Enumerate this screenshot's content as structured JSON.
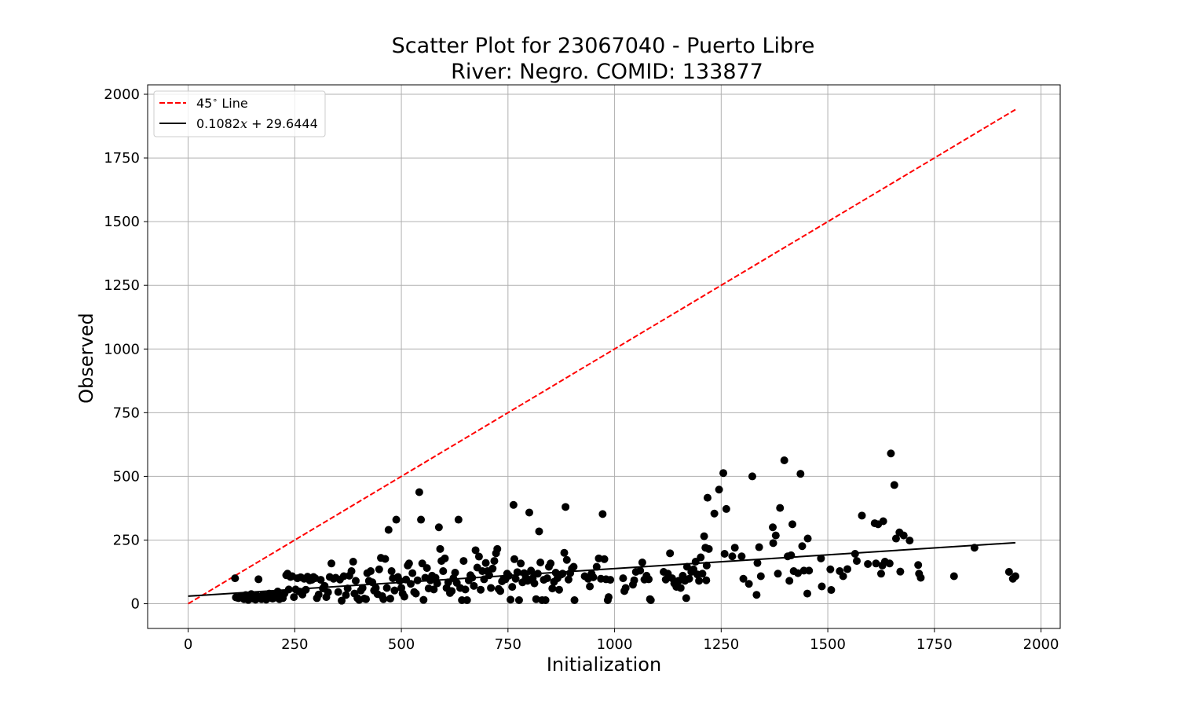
{
  "chart_data": {
    "type": "scatter",
    "title": "Scatter Plot for 23067040 - Puerto Libre",
    "subtitle": "River: Negro. COMID: 133877",
    "xlabel": "Initialization",
    "ylabel": "Observed",
    "xlim": [
      -95,
      2045
    ],
    "ylim": [
      -97,
      2037
    ],
    "xticks": [
      0,
      250,
      500,
      750,
      1000,
      1250,
      1500,
      1750,
      2000
    ],
    "yticks": [
      0,
      250,
      500,
      750,
      1000,
      1250,
      1500,
      1750,
      2000
    ],
    "grid": true,
    "legend_position": "top-left",
    "colors": {
      "points": "#000000",
      "identity_line": "#ff0000",
      "fit_line": "#000000",
      "grid": "#b0b0b0"
    },
    "lines": [
      {
        "name": "45° Line",
        "legend_label": "45$^\\circ$ Line",
        "style": "dashed",
        "color": "#ff0000",
        "x": [
          0,
          1940
        ],
        "y": [
          0,
          1940
        ]
      },
      {
        "name": "0.1082x + 29.6444",
        "legend_label": "0.1082x + 29.6444",
        "style": "solid",
        "color": "#000000",
        "slope": 0.1082,
        "intercept": 29.6444,
        "x": [
          0,
          1940
        ],
        "y": [
          29.64,
          239.55
        ]
      }
    ],
    "points": [
      [
        110,
        100
      ],
      [
        112,
        25
      ],
      [
        118,
        22
      ],
      [
        123,
        30
      ],
      [
        127,
        26
      ],
      [
        131,
        18
      ],
      [
        135,
        34
      ],
      [
        138,
        22
      ],
      [
        141,
        15
      ],
      [
        145,
        28
      ],
      [
        148,
        38
      ],
      [
        151,
        20
      ],
      [
        154,
        26
      ],
      [
        158,
        16
      ],
      [
        162,
        31
      ],
      [
        165,
        96
      ],
      [
        168,
        22
      ],
      [
        172,
        18
      ],
      [
        175,
        34
      ],
      [
        179,
        26
      ],
      [
        183,
        16
      ],
      [
        186,
        22
      ],
      [
        190,
        40
      ],
      [
        194,
        28
      ],
      [
        198,
        20
      ],
      [
        202,
        35
      ],
      [
        206,
        25
      ],
      [
        210,
        48
      ],
      [
        214,
        18
      ],
      [
        218,
        30
      ],
      [
        222,
        22
      ],
      [
        226,
        40
      ],
      [
        230,
        112
      ],
      [
        233,
        118
      ],
      [
        236,
        56
      ],
      [
        240,
        105
      ],
      [
        244,
        108
      ],
      [
        248,
        26
      ],
      [
        252,
        56
      ],
      [
        256,
        100
      ],
      [
        260,
        48
      ],
      [
        264,
        104
      ],
      [
        268,
        36
      ],
      [
        272,
        98
      ],
      [
        276,
        55
      ],
      [
        280,
        106
      ],
      [
        285,
        92
      ],
      [
        290,
        94
      ],
      [
        294,
        105
      ],
      [
        298,
        100
      ],
      [
        302,
        22
      ],
      [
        306,
        36
      ],
      [
        311,
        94
      ],
      [
        316,
        60
      ],
      [
        320,
        70
      ],
      [
        324,
        26
      ],
      [
        328,
        45
      ],
      [
        332,
        105
      ],
      [
        336,
        158
      ],
      [
        341,
        98
      ],
      [
        346,
        102
      ],
      [
        352,
        46
      ],
      [
        356,
        95
      ],
      [
        360,
        12
      ],
      [
        365,
        108
      ],
      [
        370,
        34
      ],
      [
        374,
        60
      ],
      [
        378,
        110
      ],
      [
        383,
        128
      ],
      [
        387,
        165
      ],
      [
        390,
        40
      ],
      [
        393,
        90
      ],
      [
        397,
        22
      ],
      [
        401,
        15
      ],
      [
        405,
        52
      ],
      [
        409,
        62
      ],
      [
        413,
        20
      ],
      [
        417,
        18
      ],
      [
        420,
        120
      ],
      [
        424,
        90
      ],
      [
        428,
        128
      ],
      [
        432,
        84
      ],
      [
        436,
        52
      ],
      [
        440,
        62
      ],
      [
        444,
        38
      ],
      [
        448,
        135
      ],
      [
        452,
        180
      ],
      [
        455,
        30
      ],
      [
        458,
        18
      ],
      [
        462,
        176
      ],
      [
        466,
        62
      ],
      [
        470,
        290
      ],
      [
        474,
        20
      ],
      [
        477,
        128
      ],
      [
        480,
        100
      ],
      [
        484,
        52
      ],
      [
        488,
        330
      ],
      [
        492,
        105
      ],
      [
        496,
        90
      ],
      [
        500,
        62
      ],
      [
        503,
        40
      ],
      [
        507,
        28
      ],
      [
        511,
        95
      ],
      [
        515,
        150
      ],
      [
        518,
        158
      ],
      [
        522,
        78
      ],
      [
        526,
        120
      ],
      [
        530,
        46
      ],
      [
        534,
        40
      ],
      [
        538,
        92
      ],
      [
        542,
        438
      ],
      [
        546,
        330
      ],
      [
        549,
        158
      ],
      [
        552,
        15
      ],
      [
        556,
        102
      ],
      [
        560,
        140
      ],
      [
        564,
        60
      ],
      [
        568,
        92
      ],
      [
        572,
        110
      ],
      [
        576,
        56
      ],
      [
        580,
        102
      ],
      [
        584,
        80
      ],
      [
        588,
        300
      ],
      [
        591,
        215
      ],
      [
        594,
        168
      ],
      [
        598,
        128
      ],
      [
        602,
        178
      ],
      [
        606,
        62
      ],
      [
        610,
        84
      ],
      [
        614,
        42
      ],
      [
        618,
        50
      ],
      [
        622,
        100
      ],
      [
        626,
        122
      ],
      [
        630,
        82
      ],
      [
        634,
        330
      ],
      [
        638,
        62
      ],
      [
        642,
        14
      ],
      [
        646,
        168
      ],
      [
        650,
        56
      ],
      [
        654,
        14
      ],
      [
        658,
        92
      ],
      [
        662,
        112
      ],
      [
        666,
        102
      ],
      [
        670,
        70
      ],
      [
        674,
        210
      ],
      [
        678,
        142
      ],
      [
        682,
        185
      ],
      [
        686,
        55
      ],
      [
        690,
        128
      ],
      [
        694,
        96
      ],
      [
        698,
        160
      ],
      [
        702,
        128
      ],
      [
        706,
        112
      ],
      [
        710,
        62
      ],
      [
        714,
        138
      ],
      [
        718,
        168
      ],
      [
        722,
        198
      ],
      [
        725,
        215
      ],
      [
        728,
        58
      ],
      [
        732,
        50
      ],
      [
        736,
        88
      ],
      [
        740,
        98
      ],
      [
        744,
        96
      ],
      [
        748,
        118
      ],
      [
        752,
        110
      ],
      [
        756,
        16
      ],
      [
        760,
        66
      ],
      [
        763,
        388
      ],
      [
        765,
        175
      ],
      [
        768,
        98
      ],
      [
        772,
        124
      ],
      [
        776,
        14
      ],
      [
        780,
        158
      ],
      [
        784,
        84
      ],
      [
        788,
        120
      ],
      [
        792,
        102
      ],
      [
        796,
        90
      ],
      [
        800,
        358
      ],
      [
        804,
        130
      ],
      [
        808,
        100
      ],
      [
        812,
        80
      ],
      [
        816,
        18
      ],
      [
        820,
        118
      ],
      [
        823,
        284
      ],
      [
        826,
        162
      ],
      [
        830,
        14
      ],
      [
        834,
        94
      ],
      [
        838,
        14
      ],
      [
        842,
        100
      ],
      [
        846,
        145
      ],
      [
        850,
        158
      ],
      [
        854,
        60
      ],
      [
        858,
        86
      ],
      [
        862,
        122
      ],
      [
        866,
        100
      ],
      [
        870,
        55
      ],
      [
        874,
        114
      ],
      [
        878,
        118
      ],
      [
        882,
        200
      ],
      [
        885,
        380
      ],
      [
        888,
        172
      ],
      [
        892,
        95
      ],
      [
        896,
        120
      ],
      [
        900,
        138
      ],
      [
        904,
        145
      ],
      [
        906,
        14
      ],
      [
        930,
        108
      ],
      [
        938,
        98
      ],
      [
        942,
        68
      ],
      [
        946,
        118
      ],
      [
        950,
        104
      ],
      [
        958,
        145
      ],
      [
        963,
        178
      ],
      [
        968,
        98
      ],
      [
        972,
        352
      ],
      [
        976,
        175
      ],
      [
        980,
        96
      ],
      [
        984,
        14
      ],
      [
        986,
        26
      ],
      [
        990,
        94
      ],
      [
        1020,
        100
      ],
      [
        1023,
        50
      ],
      [
        1026,
        62
      ],
      [
        1043,
        75
      ],
      [
        1046,
        92
      ],
      [
        1050,
        125
      ],
      [
        1060,
        130
      ],
      [
        1065,
        162
      ],
      [
        1070,
        95
      ],
      [
        1075,
        110
      ],
      [
        1080,
        96
      ],
      [
        1083,
        18
      ],
      [
        1085,
        14
      ],
      [
        1115,
        125
      ],
      [
        1120,
        95
      ],
      [
        1125,
        118
      ],
      [
        1130,
        198
      ],
      [
        1135,
        100
      ],
      [
        1140,
        80
      ],
      [
        1145,
        66
      ],
      [
        1150,
        90
      ],
      [
        1155,
        62
      ],
      [
        1160,
        110
      ],
      [
        1165,
        90
      ],
      [
        1168,
        22
      ],
      [
        1170,
        145
      ],
      [
        1175,
        98
      ],
      [
        1180,
        125
      ],
      [
        1185,
        135
      ],
      [
        1190,
        165
      ],
      [
        1194,
        115
      ],
      [
        1198,
        90
      ],
      [
        1202,
        182
      ],
      [
        1206,
        118
      ],
      [
        1210,
        265
      ],
      [
        1213,
        220
      ],
      [
        1215,
        92
      ],
      [
        1218,
        416
      ],
      [
        1221,
        215
      ],
      [
        1216,
        150
      ],
      [
        1234,
        354
      ],
      [
        1245,
        448
      ],
      [
        1255,
        513
      ],
      [
        1258,
        196
      ],
      [
        1262,
        372
      ],
      [
        1276,
        186
      ],
      [
        1282,
        220
      ],
      [
        1298,
        186
      ],
      [
        1302,
        98
      ],
      [
        1315,
        78
      ],
      [
        1323,
        500
      ],
      [
        1333,
        35
      ],
      [
        1335,
        160
      ],
      [
        1339,
        222
      ],
      [
        1343,
        108
      ],
      [
        1371,
        300
      ],
      [
        1372,
        238
      ],
      [
        1378,
        268
      ],
      [
        1383,
        118
      ],
      [
        1388,
        376
      ],
      [
        1398,
        563
      ],
      [
        1406,
        186
      ],
      [
        1410,
        90
      ],
      [
        1414,
        190
      ],
      [
        1417,
        312
      ],
      [
        1420,
        128
      ],
      [
        1430,
        120
      ],
      [
        1436,
        510
      ],
      [
        1440,
        226
      ],
      [
        1444,
        130
      ],
      [
        1452,
        40
      ],
      [
        1453,
        256
      ],
      [
        1456,
        130
      ],
      [
        1484,
        178
      ],
      [
        1486,
        68
      ],
      [
        1506,
        135
      ],
      [
        1508,
        54
      ],
      [
        1528,
        128
      ],
      [
        1536,
        108
      ],
      [
        1546,
        136
      ],
      [
        1564,
        196
      ],
      [
        1568,
        168
      ],
      [
        1580,
        346
      ],
      [
        1594,
        156
      ],
      [
        1610,
        316
      ],
      [
        1613,
        158
      ],
      [
        1618,
        312
      ],
      [
        1625,
        118
      ],
      [
        1628,
        150
      ],
      [
        1630,
        324
      ],
      [
        1634,
        165
      ],
      [
        1645,
        158
      ],
      [
        1648,
        590
      ],
      [
        1656,
        466
      ],
      [
        1660,
        256
      ],
      [
        1668,
        280
      ],
      [
        1670,
        126
      ],
      [
        1678,
        268
      ],
      [
        1692,
        248
      ],
      [
        1712,
        152
      ],
      [
        1714,
        118
      ],
      [
        1718,
        102
      ],
      [
        1796,
        108
      ],
      [
        1844,
        220
      ],
      [
        1925,
        125
      ],
      [
        1934,
        98
      ],
      [
        1940,
        108
      ]
    ]
  }
}
